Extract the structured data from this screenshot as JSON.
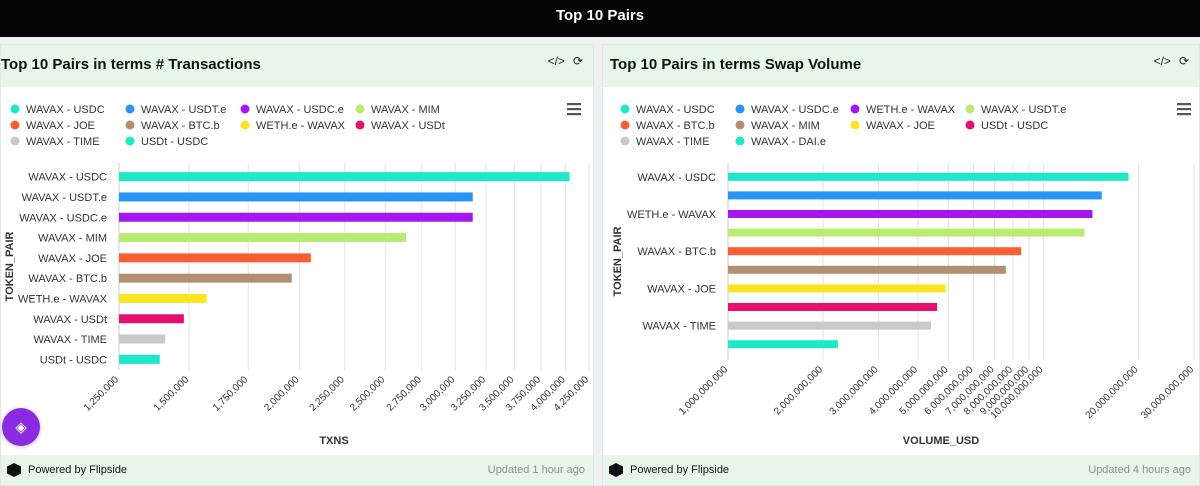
{
  "header": {
    "title": "Top 10 Pairs"
  },
  "panels": [
    {
      "title": "Top 10 Pairs in terms # Transactions",
      "footer_brand": "Powered by Flipside",
      "footer_updated": "Updated 1 hour ago",
      "icons": [
        "code-icon",
        "refresh-icon"
      ]
    },
    {
      "title": "Top 10 Pairs in terms Swap Volume",
      "footer_brand": "Powered by Flipside",
      "footer_updated": "Updated 4 hours ago",
      "icons": [
        "code-icon",
        "refresh-icon"
      ]
    }
  ],
  "chart_data": [
    {
      "type": "bar",
      "orientation": "horizontal",
      "title": "Top 10 Pairs in terms # Transactions",
      "xlabel": "TXNS",
      "ylabel": "TOKEN_PAIR",
      "scale": "log",
      "xlim": [
        1250000,
        4250000
      ],
      "x_ticks": [
        1250000,
        1500000,
        1750000,
        2000000,
        2250000,
        2500000,
        2750000,
        3000000,
        3250000,
        3500000,
        3750000,
        4000000,
        4250000
      ],
      "x_tick_labels": [
        "1,250,000",
        "1,500,000",
        "1,750,000",
        "2,000,000",
        "2,250,000",
        "2,500,000",
        "2,750,000",
        "3,000,000",
        "3,250,000",
        "3,500,000",
        "3,750,000",
        "4,000,000",
        "4,250,000"
      ],
      "categories": [
        "WAVAX - USDC",
        "WAVAX - USDT.e",
        "WAVAX - USDC.e",
        "WAVAX - MIM",
        "WAVAX - JOE",
        "WAVAX - BTC.b",
        "WETH.e - WAVAX",
        "WAVAX - USDt",
        "WAVAX - TIME",
        "USDt - USDC"
      ],
      "values": [
        4040000,
        3140000,
        3140000,
        2640000,
        2060000,
        1960000,
        1570000,
        1480000,
        1410000,
        1390000
      ],
      "colors": [
        "#1de9c8",
        "#2894f4",
        "#a417ee",
        "#b8ec70",
        "#fb5e32",
        "#b09070",
        "#fde321",
        "#e5106d",
        "#c9c9c9",
        "#1de9c8"
      ],
      "legend": [
        "WAVAX - USDC",
        "WAVAX - USDT.e",
        "WAVAX - USDC.e",
        "WAVAX - MIM",
        "WAVAX - JOE",
        "WAVAX - BTC.b",
        "WETH.e - WAVAX",
        "WAVAX - USDt",
        "WAVAX - TIME",
        "USDt - USDC"
      ],
      "legend_colors": [
        "#1de9c8",
        "#2894f4",
        "#a417ee",
        "#b8ec70",
        "#fb5e32",
        "#b09070",
        "#fde321",
        "#e5106d",
        "#c9c9c9",
        "#1de9c8"
      ]
    },
    {
      "type": "bar",
      "orientation": "horizontal",
      "title": "Top 10 Pairs in terms Swap Volume",
      "xlabel": "VOLUME_USD",
      "ylabel": "TOKEN_PAIR",
      "scale": "log",
      "xlim": [
        1000000000,
        30000000000
      ],
      "x_ticks": [
        1000000000,
        2000000000,
        3000000000,
        4000000000,
        5000000000,
        6000000000,
        7000000000,
        8000000000,
        9000000000,
        10000000000,
        20000000000,
        30000000000
      ],
      "x_tick_labels": [
        "1,000,000,000",
        "2,000,000,000",
        "3,000,000,000",
        "4,000,000,000",
        "5,000,000,000",
        "6,000,000,000",
        "7,000,000,000",
        "8,000,000,000",
        "9,000,000,000",
        "10,000,000,000",
        "20,000,000,000",
        "30,000,000,000"
      ],
      "categories": [
        "WAVAX - USDC",
        "",
        "WETH.e - WAVAX",
        "",
        "WAVAX - BTC.b",
        "",
        "WAVAX - JOE",
        "",
        "WAVAX - TIME",
        ""
      ],
      "values": [
        18600000000,
        15300000000,
        14300000000,
        13500000000,
        8500000000,
        7600000000,
        4900000000,
        4600000000,
        4400000000,
        2230000000
      ],
      "colors": [
        "#1de9c8",
        "#2894f4",
        "#a417ee",
        "#b8ec70",
        "#fb5e32",
        "#b09070",
        "#fde321",
        "#e5106d",
        "#c9c9c9",
        "#1de9c8"
      ],
      "legend": [
        "WAVAX - USDC",
        "WAVAX - USDC.e",
        "WETH.e - WAVAX",
        "WAVAX - USDT.e",
        "WAVAX - BTC.b",
        "WAVAX - MIM",
        "WAVAX - JOE",
        "USDt - USDC",
        "WAVAX - TIME",
        "WAVAX - DAI.e"
      ],
      "legend_colors": [
        "#1de9c8",
        "#2894f4",
        "#a417ee",
        "#b8ec70",
        "#fb5e32",
        "#b09070",
        "#fde321",
        "#e5106d",
        "#c9c9c9",
        "#1de9c8"
      ]
    }
  ]
}
